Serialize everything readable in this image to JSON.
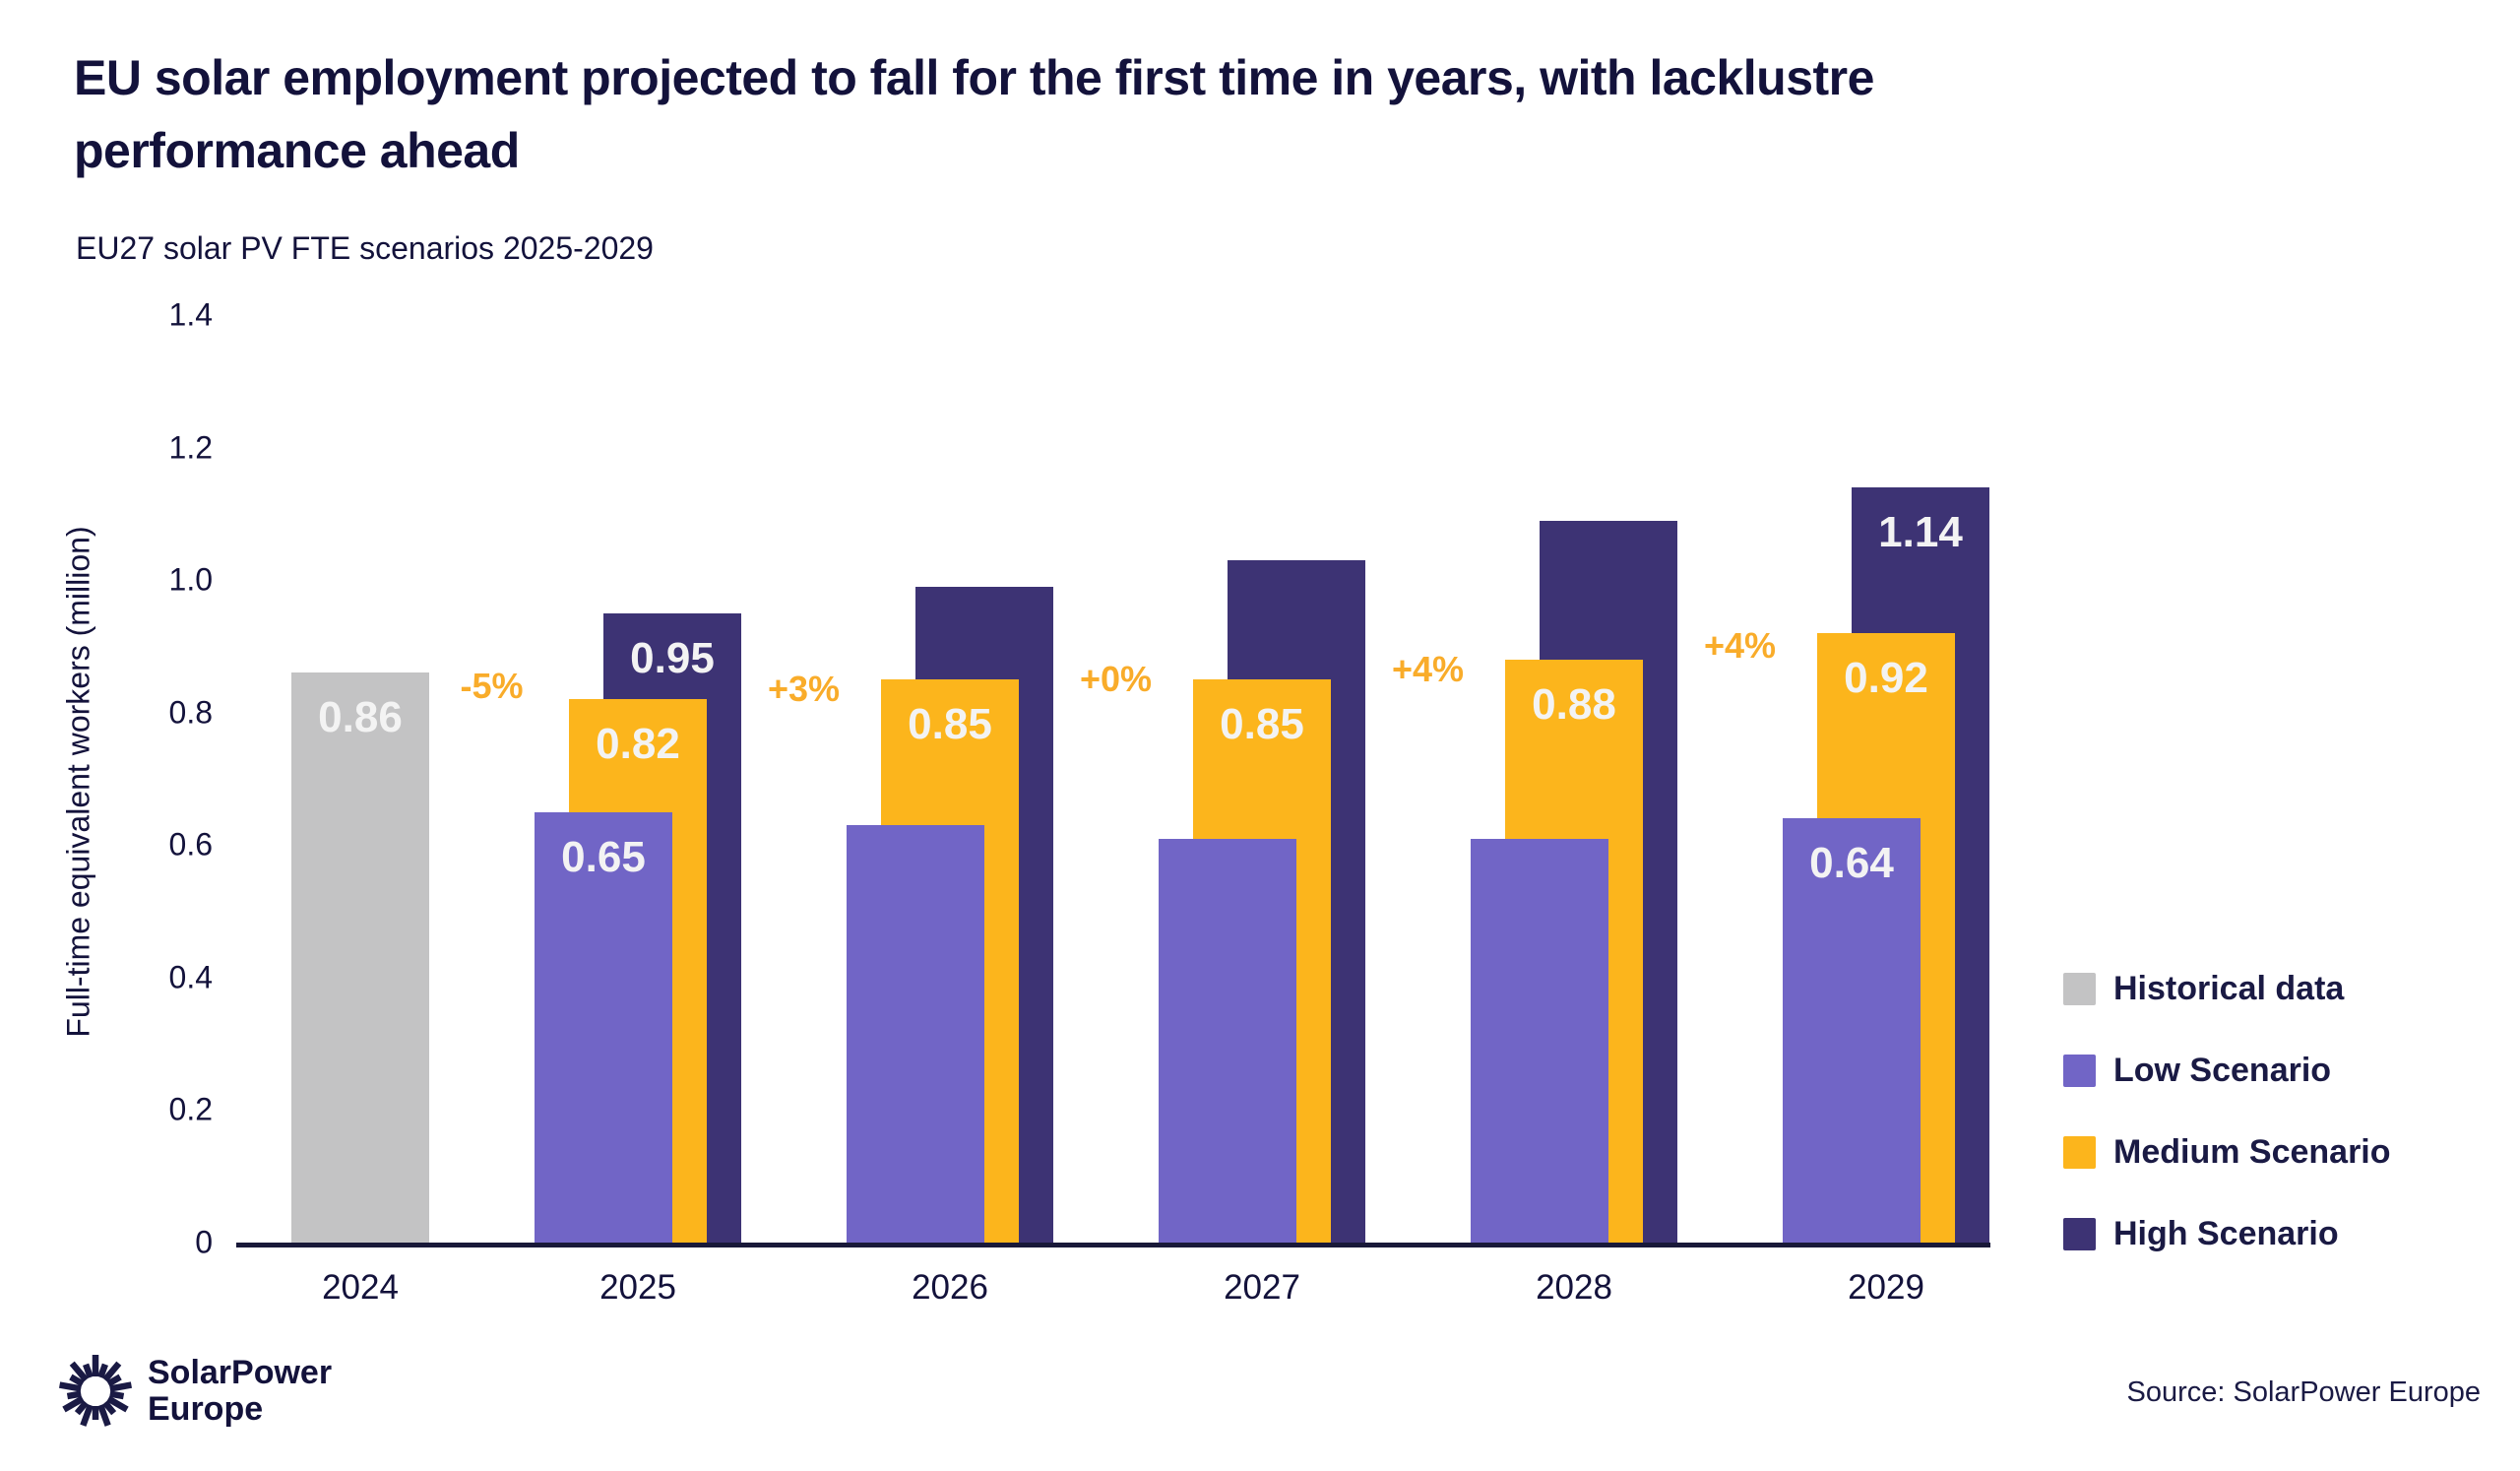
{
  "header": {
    "title_line1": "EU solar employment projected to fall for the first time in years, with lacklustre",
    "title_line2": "performance ahead",
    "subtitle": "EU27 solar PV FTE scenarios 2025-2029"
  },
  "chart_data": {
    "type": "bar",
    "title": "EU solar employment projected to fall for the first time in years, with lacklustre performance ahead",
    "subtitle": "EU27 solar PV FTE scenarios 2025-2029",
    "ylabel": "Full-time equivalent workers (million)",
    "xlabel": "",
    "ylim": [
      0,
      1.4
    ],
    "yticks": [
      0,
      0.2,
      0.4,
      0.6,
      0.8,
      1.0,
      1.2,
      1.4
    ],
    "ytick_labels": [
      "0",
      "0.2",
      "0.4",
      "0.6",
      "0.8",
      "1.0",
      "1.2",
      "1.4"
    ],
    "grid": false,
    "legend_position": "right",
    "categories": [
      "2024",
      "2025",
      "2026",
      "2027",
      "2028",
      "2029"
    ],
    "series": [
      {
        "name": "Historical data",
        "color": "#C3C3C4",
        "values": [
          0.86,
          null,
          null,
          null,
          null,
          null
        ],
        "labels": [
          "0.86",
          null,
          null,
          null,
          null,
          null
        ]
      },
      {
        "name": "Low Scenario",
        "color": "#7165C6",
        "values": [
          null,
          0.65,
          0.63,
          0.61,
          0.61,
          0.64
        ],
        "labels": [
          null,
          "0.65",
          null,
          null,
          null,
          "0.64"
        ]
      },
      {
        "name": "Medium Scenario",
        "color": "#FCB51C",
        "values": [
          null,
          0.82,
          0.85,
          0.85,
          0.88,
          0.92
        ],
        "labels": [
          null,
          "0.82",
          "0.85",
          "0.85",
          "0.88",
          "0.92"
        ]
      },
      {
        "name": "High Scenario",
        "color": "#3D3374",
        "values": [
          null,
          0.95,
          0.99,
          1.03,
          1.09,
          1.14
        ],
        "labels": [
          null,
          "0.95",
          null,
          null,
          null,
          "1.14"
        ]
      }
    ],
    "change_labels": [
      {
        "between": "2024-2025",
        "text": "-5%"
      },
      {
        "between": "2025-2026",
        "text": "+3%"
      },
      {
        "between": "2026-2027",
        "text": "+0%"
      },
      {
        "between": "2027-2028",
        "text": "+4%"
      },
      {
        "between": "2028-2029",
        "text": "+4%"
      }
    ],
    "change_label_color": "#F9AC2A",
    "axis_color": "#191939",
    "text_color": "#13123B"
  },
  "legend": {
    "items": [
      {
        "label": "Historical data",
        "color": "#C3C3C4"
      },
      {
        "label": "Low Scenario",
        "color": "#7165C6"
      },
      {
        "label": "Medium Scenario",
        "color": "#FCB51C"
      },
      {
        "label": "High Scenario",
        "color": "#3D3374"
      }
    ]
  },
  "footer": {
    "logo_line1": "SolarPower",
    "logo_line2": "Europe",
    "source": "Source: SolarPower Europe"
  }
}
